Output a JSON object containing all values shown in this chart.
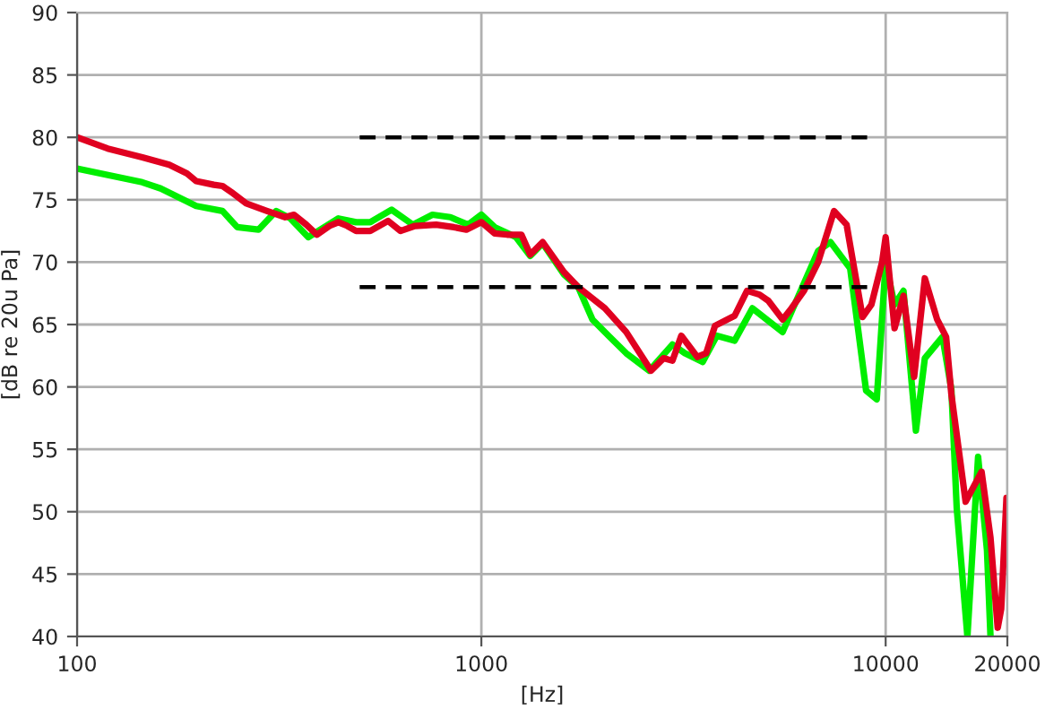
{
  "chart_data": {
    "type": "line",
    "xlabel": "[Hz]",
    "ylabel": "[dB re 20u Pa]",
    "log": "x",
    "xlim": [
      100,
      20000
    ],
    "xticks": [
      100,
      1000,
      10000,
      20000
    ],
    "ylim": [
      40,
      90
    ],
    "yticks": [
      40,
      45,
      50,
      55,
      60,
      65,
      70,
      75,
      80,
      85,
      90
    ],
    "grid": true,
    "legend": false,
    "marker": "none",
    "series": [
      {
        "color": "#00ee00",
        "line_style": "solid",
        "x": [
          100,
          145,
          161,
          197,
          229,
          249,
          281,
          311,
          337,
          373,
          443,
          490,
          531,
          600,
          677,
          757,
          838,
          927,
          1000,
          1079,
          1218,
          1321,
          1418,
          1601,
          1736,
          1883,
          2063,
          2282,
          2603,
          2969,
          3187,
          3527,
          3822,
          4231,
          4681,
          5561,
          6808,
          7305,
          8170,
          8946,
          9506,
          10000,
          10520,
          11070,
          11880,
          12500,
          13820,
          14540,
          14990,
          15930,
          16930,
          17810,
          18170
        ],
        "values": [
          77.5,
          76.4,
          75.9,
          74.5,
          74.1,
          72.8,
          72.6,
          74.1,
          73.5,
          72.0,
          73.5,
          73.2,
          73.2,
          74.2,
          73.0,
          73.8,
          73.6,
          73.0,
          73.8,
          72.8,
          72.0,
          70.5,
          71.5,
          69.0,
          68.0,
          65.4,
          64.1,
          62.7,
          61.3,
          63.4,
          62.7,
          62.0,
          64.1,
          63.7,
          66.3,
          64.4,
          70.9,
          71.6,
          69.5,
          59.7,
          59.0,
          69.9,
          66.6,
          67.7,
          56.5,
          62.3,
          64.0,
          59.8,
          50.3,
          40.0,
          54.4,
          46.9,
          40.0
        ]
      },
      {
        "color": "#e00020",
        "line_style": "solid",
        "x": [
          100,
          119,
          145,
          169,
          187,
          197,
          218,
          229,
          241,
          262,
          295,
          327,
          344,
          369,
          392,
          421,
          443,
          466,
          490,
          531,
          588,
          631,
          685,
          773,
          855,
          918,
          1000,
          1079,
          1158,
          1256,
          1321,
          1418,
          1601,
          1736,
          2021,
          2282,
          2629,
          2822,
          2969,
          3123,
          3421,
          3597,
          3784,
          4231,
          4541,
          4875,
          5127,
          5561,
          5848,
          6280,
          6808,
          7454,
          8006,
          8768,
          9222,
          9799,
          10000,
          10520,
          11070,
          11760,
          12500,
          13410,
          14110,
          14540,
          15770,
          17270,
          18170,
          18930,
          19310,
          19900
        ],
        "values": [
          80.0,
          79.1,
          78.4,
          77.8,
          77.1,
          76.5,
          76.2,
          76.1,
          75.6,
          74.7,
          74.1,
          73.6,
          73.8,
          73.0,
          72.2,
          72.9,
          73.2,
          72.9,
          72.5,
          72.5,
          73.3,
          72.5,
          72.9,
          73.0,
          72.8,
          72.6,
          73.2,
          72.3,
          72.2,
          72.2,
          70.6,
          71.6,
          69.2,
          68.0,
          66.3,
          64.4,
          61.3,
          62.3,
          62.1,
          64.1,
          62.4,
          62.7,
          64.9,
          65.7,
          67.7,
          67.4,
          66.9,
          65.4,
          66.3,
          67.7,
          70.0,
          74.1,
          73.0,
          65.6,
          66.6,
          70.0,
          72.0,
          64.7,
          67.3,
          60.8,
          68.7,
          65.4,
          64.0,
          59.4,
          50.8,
          53.2,
          47.9,
          40.7,
          42.2,
          51.1
        ]
      },
      {
        "color": "#000000",
        "line_style": "dashed",
        "x": [
          500,
          9000
        ],
        "values": [
          80,
          80
        ]
      },
      {
        "color": "#000000",
        "line_style": "dashed",
        "x": [
          500,
          9000
        ],
        "values": [
          68,
          68
        ]
      }
    ]
  }
}
